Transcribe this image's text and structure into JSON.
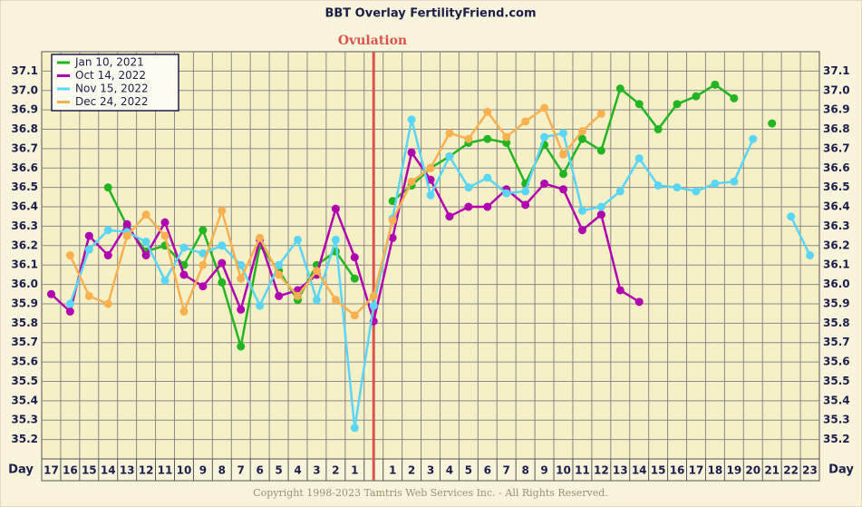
{
  "chart_data": {
    "type": "line",
    "title": "BBT Overlay FertilityFriend.com",
    "annotation": "Ovulation",
    "x_label": "Day",
    "footer": "Copyright 1998-2023 Tamtris Web Services Inc. - All Rights Reserved.",
    "categories": [
      "17",
      "16",
      "15",
      "14",
      "13",
      "12",
      "11",
      "10",
      "9",
      "8",
      "7",
      "6",
      "5",
      "4",
      "3",
      "2",
      "1",
      null,
      "1",
      "2",
      "3",
      "4",
      "5",
      "6",
      "7",
      "8",
      "9",
      "10",
      "11",
      "12",
      "13",
      "14",
      "15",
      "16",
      "17",
      "18",
      "19",
      "20",
      "21",
      "22",
      "23"
    ],
    "ylim": [
      35.1,
      37.2
    ],
    "yticks": [
      35.2,
      35.3,
      35.4,
      35.5,
      35.6,
      35.7,
      35.8,
      35.9,
      {
        "value": 36,
        "label": "36.0"
      },
      36.1,
      36.2,
      36.3,
      36.4,
      36.5,
      36.6,
      36.7,
      36.8,
      36.9,
      {
        "value": 37,
        "label": "37.0"
      },
      37.1
    ],
    "grid": true,
    "legend": "top-left",
    "series": [
      {
        "name": "Jan 10, 2021",
        "color": "#22b422",
        "values": [
          null,
          null,
          null,
          36.5,
          36.3,
          36.17,
          36.2,
          36.1,
          36.28,
          36.01,
          35.68,
          36.2,
          36.07,
          35.92,
          36.1,
          36.17,
          36.03,
          null,
          36.43,
          36.51,
          36.6,
          36.66,
          36.73,
          36.75,
          36.73,
          36.52,
          36.72,
          36.57,
          36.75,
          36.69,
          37.01,
          36.93,
          36.8,
          36.93,
          36.97,
          37.03,
          36.96,
          null,
          36.83,
          null,
          null
        ]
      },
      {
        "name": "Oct 14, 2022",
        "color": "#b000b0",
        "values": [
          35.95,
          35.86,
          36.25,
          36.15,
          36.31,
          36.15,
          36.32,
          36.05,
          35.99,
          36.11,
          35.87,
          36.23,
          35.94,
          35.97,
          36.05,
          36.39,
          36.14,
          35.81,
          36.24,
          36.68,
          36.54,
          36.35,
          36.4,
          36.4,
          36.49,
          36.41,
          36.52,
          36.49,
          36.28,
          36.36,
          35.97,
          35.91,
          null,
          null,
          null,
          null,
          null,
          null,
          null,
          null,
          null
        ]
      },
      {
        "name": "Nov 15, 2022",
        "color": "#5ad5f5",
        "values": [
          null,
          35.9,
          36.18,
          36.28,
          36.27,
          36.22,
          36.02,
          36.19,
          36.16,
          36.2,
          36.1,
          35.89,
          36.1,
          36.23,
          35.92,
          36.23,
          35.26,
          35.89,
          36.34,
          36.85,
          36.46,
          36.66,
          36.5,
          36.55,
          36.47,
          36.48,
          36.76,
          36.78,
          36.38,
          36.4,
          36.48,
          36.65,
          36.51,
          36.5,
          36.48,
          36.52,
          36.53,
          36.75,
          null,
          36.35,
          36.15
        ]
      },
      {
        "name": "Dec 24, 2022",
        "color": "#f8b050",
        "values": [
          null,
          36.15,
          35.94,
          35.9,
          36.25,
          36.36,
          36.25,
          35.86,
          36.1,
          36.38,
          36.03,
          36.24,
          36.05,
          35.94,
          36.07,
          35.92,
          35.84,
          35.94,
          36.33,
          36.53,
          36.6,
          36.78,
          36.75,
          36.89,
          36.76,
          36.84,
          36.91,
          36.67,
          36.79,
          36.88,
          null,
          null,
          null,
          null,
          null,
          null,
          null,
          null,
          null,
          null,
          null
        ]
      }
    ]
  }
}
